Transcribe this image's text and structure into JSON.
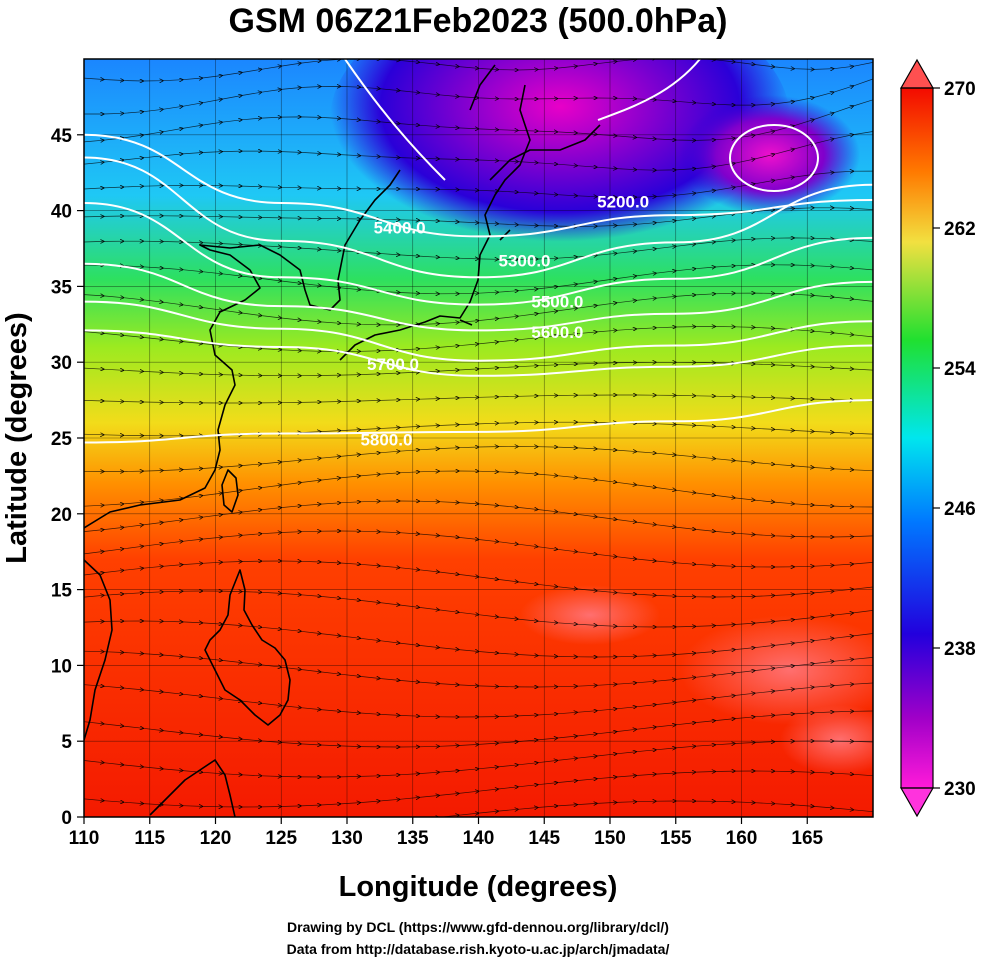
{
  "title": "GSM 06Z21Feb2023 (500.0hPa)",
  "xlabel": "Longitude (degrees)",
  "ylabel": "Latitude  (degrees)",
  "credits": [
    "Drawing by DCL (https://www.gfd-dennou.org/library/dcl/)",
    "Data from http://database.rish.kyoto-u.ac.jp/arch/jmadata/"
  ],
  "chart_data": {
    "type": "heatmap",
    "projection": "equirectangular",
    "xlim": [
      110,
      170
    ],
    "ylim": [
      0,
      50
    ],
    "x_ticks": [
      110,
      115,
      120,
      125,
      130,
      135,
      140,
      145,
      150,
      155,
      160,
      165
    ],
    "y_ticks": [
      0,
      5,
      10,
      15,
      20,
      25,
      30,
      35,
      40,
      45
    ],
    "grid": true,
    "colorbar": {
      "position": "right",
      "range": [
        230,
        270
      ],
      "tick_labels": [
        "270",
        "262",
        "254",
        "246",
        "238",
        "230"
      ],
      "extend": "both",
      "colors": [
        "#ff1ad9",
        "#2200dd",
        "#00ddff",
        "#20e030",
        "#f2e040",
        "#f30a00"
      ]
    },
    "contours": [
      {
        "label": "5200.0",
        "lat": [
          45,
          40.5,
          38.3,
          39.7,
          40.7
        ]
      },
      {
        "label": "5300.0",
        "lat": [
          43.5,
          38,
          35.6,
          37.9,
          41.7
        ]
      },
      {
        "label": "5400.0",
        "lat": [
          40.5,
          35.6,
          33.8,
          35.5,
          38.2
        ]
      },
      {
        "label": "5500.0",
        "lat": [
          36.5,
          33.7,
          32.1,
          33.2,
          35.3
        ]
      },
      {
        "label": "5600.0",
        "lat": [
          34,
          32.2,
          30.1,
          31.1,
          32.7
        ]
      },
      {
        "label": "5700.0",
        "lat": [
          32.1,
          31,
          29.1,
          29.7,
          31.1
        ]
      },
      {
        "label": "5800.0",
        "lat": [
          24.7,
          25.3,
          25.4,
          26.1,
          27.5
        ]
      }
    ],
    "contour_label_positions": [
      {
        "label": "5200.0",
        "lon": 151,
        "lat": 40.2
      },
      {
        "label": "5300.0",
        "lon": 143.5,
        "lat": 36.3
      },
      {
        "label": "5400.0",
        "lon": 134,
        "lat": 38.5
      },
      {
        "label": "5500.0",
        "lon": 146,
        "lat": 33.6
      },
      {
        "label": "5600.0",
        "lon": 146,
        "lat": 31.6
      },
      {
        "label": "5700.0",
        "lon": 133.5,
        "lat": 29.5
      },
      {
        "label": "5800.0",
        "lon": 133,
        "lat": 24.5
      }
    ]
  }
}
